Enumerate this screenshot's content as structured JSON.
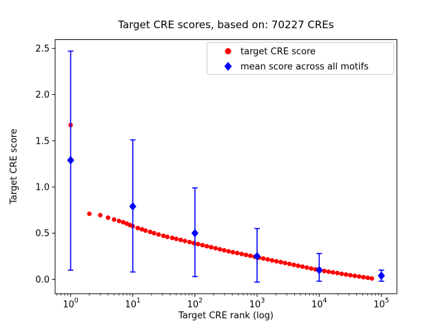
{
  "chart_data": {
    "type": "scatter",
    "title": "Target CRE scores, based on: 70227 CREs",
    "xlabel": "Target CRE rank (log)",
    "ylabel": "Target CRE score",
    "x_scale": "log",
    "x_tick_base": "10",
    "x_tick_exponents": [
      0,
      1,
      2,
      3,
      4,
      5
    ],
    "x_range_log10": [
      -0.25,
      5.25
    ],
    "y_ticks": [
      "0.0",
      "0.5",
      "1.0",
      "1.5",
      "2.0",
      "2.5"
    ],
    "y_range": [
      -0.155,
      2.595
    ],
    "grid": false,
    "colors": {
      "target": "#ff0000",
      "mean": "#0000ff"
    },
    "legend": {
      "position": "upper right",
      "items": [
        {
          "label": "target CRE score",
          "marker": "circle",
          "color": "#ff0000"
        },
        {
          "label": "mean score across all motifs",
          "marker": "diamond",
          "color": "#0000ff"
        }
      ]
    },
    "series": [
      {
        "name": "target CRE score",
        "type": "scatter",
        "marker": "circle",
        "color": "#ff0000",
        "points": [
          [
            1,
            1.67
          ],
          [
            2,
            0.71
          ],
          [
            3,
            0.695
          ],
          [
            4,
            0.668
          ],
          [
            5,
            0.648
          ],
          [
            6,
            0.632
          ],
          [
            7,
            0.618
          ],
          [
            8,
            0.603
          ],
          [
            9,
            0.588
          ],
          [
            10,
            0.575
          ],
          [
            12,
            0.556
          ],
          [
            14,
            0.542
          ],
          [
            16,
            0.528
          ],
          [
            19,
            0.514
          ],
          [
            22,
            0.5
          ],
          [
            26,
            0.486
          ],
          [
            31,
            0.472
          ],
          [
            36,
            0.46
          ],
          [
            43,
            0.449
          ],
          [
            50,
            0.438
          ],
          [
            59,
            0.427
          ],
          [
            69,
            0.415
          ],
          [
            82,
            0.404
          ],
          [
            96,
            0.393
          ],
          [
            112,
            0.382
          ],
          [
            132,
            0.371
          ],
          [
            155,
            0.359
          ],
          [
            182,
            0.348
          ],
          [
            214,
            0.337
          ],
          [
            252,
            0.326
          ],
          [
            296,
            0.315
          ],
          [
            348,
            0.304
          ],
          [
            408,
            0.294
          ],
          [
            480,
            0.285
          ],
          [
            564,
            0.275
          ],
          [
            662,
            0.265
          ],
          [
            778,
            0.255
          ],
          [
            914,
            0.245
          ],
          [
            1074,
            0.236
          ],
          [
            1262,
            0.226
          ],
          [
            1483,
            0.216
          ],
          [
            1742,
            0.206
          ],
          [
            2046,
            0.196
          ],
          [
            2404,
            0.187
          ],
          [
            2825,
            0.177
          ],
          [
            3319,
            0.167
          ],
          [
            3899,
            0.157
          ],
          [
            4581,
            0.147
          ],
          [
            5383,
            0.138
          ],
          [
            6324,
            0.128
          ],
          [
            7430,
            0.118
          ],
          [
            8730,
            0.108
          ],
          [
            10257,
            0.099
          ],
          [
            12050,
            0.091
          ],
          [
            14158,
            0.083
          ],
          [
            16634,
            0.076
          ],
          [
            19543,
            0.068
          ],
          [
            22961,
            0.06
          ],
          [
            26977,
            0.053
          ],
          [
            31696,
            0.045
          ],
          [
            37239,
            0.038
          ],
          [
            43752,
            0.031
          ],
          [
            51404,
            0.024
          ],
          [
            60394,
            0.017
          ],
          [
            70227,
            0.01
          ]
        ]
      },
      {
        "name": "mean score across all motifs",
        "type": "errorbar",
        "marker": "diamond",
        "color": "#0000ff",
        "x": [
          1,
          10,
          100,
          1000,
          10000,
          100000
        ],
        "mean": [
          1.29,
          0.79,
          0.5,
          0.25,
          0.1,
          0.04
        ],
        "err_lower": [
          0.1,
          0.08,
          0.03,
          -0.03,
          -0.02,
          -0.02
        ],
        "err_upper": [
          2.47,
          1.51,
          0.99,
          0.55,
          0.28,
          0.1
        ]
      }
    ]
  }
}
